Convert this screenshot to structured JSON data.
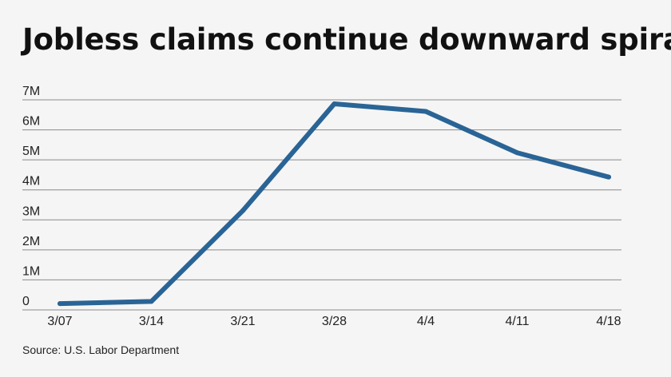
{
  "title": "Jobless claims continue downward spiral",
  "source": "Source: U.S. Labor Department",
  "colors": {
    "line": "#2a6496",
    "grid": "#8a8a8a",
    "background": "#f5f5f5"
  },
  "chart_data": {
    "type": "line",
    "title": "Jobless claims continue downward spiral",
    "xlabel": "",
    "ylabel": "",
    "categories": [
      "3/07",
      "3/14",
      "3/21",
      "3/28",
      "4/4",
      "4/11",
      "4/18"
    ],
    "series": [
      {
        "values": [
          211000,
          282000,
          3307000,
          6867000,
          6615000,
          5237000,
          4427000
        ]
      }
    ],
    "ylim": [
      0,
      7000000
    ],
    "yticks": [
      0,
      1000000,
      2000000,
      3000000,
      4000000,
      5000000,
      6000000,
      7000000
    ],
    "ytick_labels": [
      "0",
      "1M",
      "2M",
      "3M",
      "4M",
      "5M",
      "6M",
      "7M"
    ],
    "grid": true,
    "legend": "none"
  }
}
